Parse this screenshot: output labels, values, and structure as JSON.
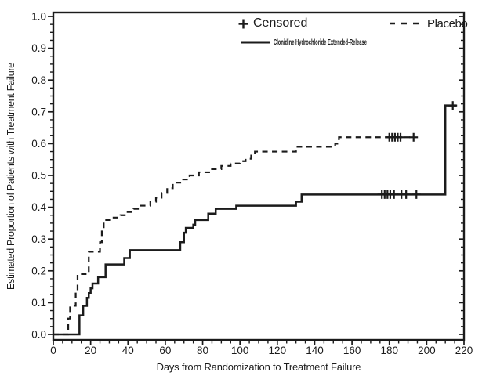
{
  "figure": {
    "background": "#ffffff",
    "ink_color": "#1b1b1b"
  },
  "legend": {
    "position": "top-inside",
    "items": [
      {
        "marker": "plus",
        "label": "Censored"
      },
      {
        "marker": "dashed-line",
        "label": "Placebo"
      },
      {
        "marker": "solid-line",
        "label": "Clonidine Hydrochloride Extended-Release"
      }
    ]
  },
  "chart_data": {
    "type": "line",
    "subtype": "kaplan-meier-step",
    "title": "",
    "xlabel": "Days from Randomization to Treatment Failure",
    "ylabel": "Estimated Proportion of Patients with Treatment Failure",
    "xlim": [
      0,
      220
    ],
    "ylim": [
      0.0,
      1.0
    ],
    "grid": false,
    "x_major_ticks": [
      0,
      20,
      40,
      60,
      80,
      100,
      120,
      140,
      160,
      180,
      200,
      220
    ],
    "x_minor_interval": 5,
    "y_major_tick_labels": [
      "0.0",
      "0.1",
      "0.2",
      "0.3",
      "0.4",
      "0.5",
      "0.6",
      "0.7",
      "0.8",
      "0.9",
      "1.0"
    ],
    "y_minor_interval": 0.025,
    "series": [
      {
        "name": "Placebo",
        "line_style": "dashed",
        "color": "#1b1b1b",
        "steps": [
          [
            0,
            0.0
          ],
          [
            8,
            0.05
          ],
          [
            9,
            0.09
          ],
          [
            12,
            0.135
          ],
          [
            13,
            0.19
          ],
          [
            19,
            0.26
          ],
          [
            25,
            0.29
          ],
          [
            26,
            0.33
          ],
          [
            27,
            0.36
          ],
          [
            30,
            0.3675
          ],
          [
            36,
            0.375
          ],
          [
            39,
            0.385
          ],
          [
            43,
            0.395
          ],
          [
            46,
            0.405
          ],
          [
            52,
            0.4175
          ],
          [
            55,
            0.43
          ],
          [
            58,
            0.445
          ],
          [
            61,
            0.46
          ],
          [
            64,
            0.4775
          ],
          [
            68,
            0.4875
          ],
          [
            73,
            0.5
          ],
          [
            78,
            0.51
          ],
          [
            84,
            0.52
          ],
          [
            90,
            0.53
          ],
          [
            95,
            0.5375
          ],
          [
            100,
            0.545
          ],
          [
            103,
            0.5525
          ],
          [
            106,
            0.5625
          ],
          [
            108,
            0.575
          ],
          [
            130,
            0.59
          ],
          [
            151,
            0.6
          ],
          [
            153,
            0.62
          ]
        ],
        "end_day": 193,
        "censored": [
          [
            180,
            0.62
          ],
          [
            181.5,
            0.62
          ],
          [
            183,
            0.62
          ],
          [
            184.5,
            0.62
          ],
          [
            186,
            0.62
          ],
          [
            193,
            0.62
          ]
        ]
      },
      {
        "name": "Clonidine Hydrochloride Extended-Release",
        "line_style": "solid",
        "color": "#1b1b1b",
        "steps": [
          [
            0,
            0.0
          ],
          [
            14,
            0.06
          ],
          [
            16,
            0.09
          ],
          [
            18,
            0.115
          ],
          [
            19,
            0.13
          ],
          [
            20,
            0.145
          ],
          [
            21,
            0.16
          ],
          [
            24,
            0.18
          ],
          [
            28,
            0.22
          ],
          [
            38,
            0.24
          ],
          [
            41,
            0.265
          ],
          [
            68,
            0.29
          ],
          [
            70,
            0.32
          ],
          [
            71,
            0.335
          ],
          [
            75,
            0.345
          ],
          [
            76,
            0.36
          ],
          [
            83,
            0.38
          ],
          [
            87,
            0.395
          ],
          [
            98,
            0.405
          ],
          [
            130,
            0.4175
          ],
          [
            133,
            0.44
          ],
          [
            210,
            0.72
          ]
        ],
        "end_day": 216,
        "censored": [
          [
            176,
            0.44
          ],
          [
            177.5,
            0.44
          ],
          [
            179,
            0.44
          ],
          [
            180.5,
            0.44
          ],
          [
            182.5,
            0.44
          ],
          [
            186.5,
            0.44
          ],
          [
            189,
            0.44
          ],
          [
            194.5,
            0.44
          ],
          [
            214,
            0.72
          ]
        ]
      }
    ]
  }
}
